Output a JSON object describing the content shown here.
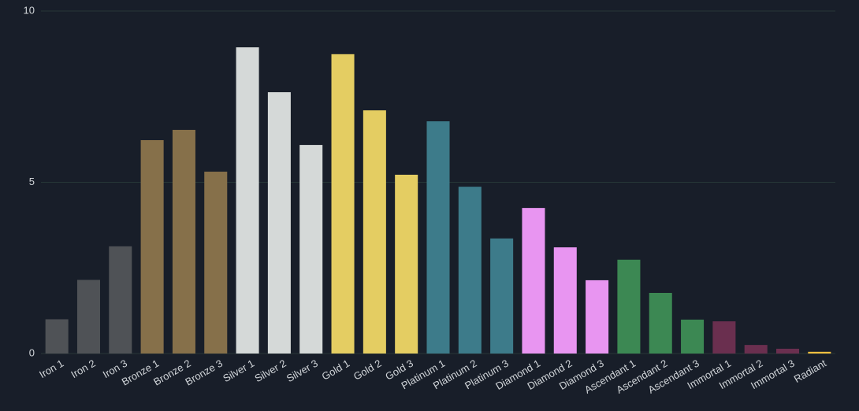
{
  "chart_data": {
    "type": "bar",
    "categories": [
      "Iron 1",
      "Iron 2",
      "Iron 3",
      "Bronze 1",
      "Bronze 2",
      "Bronze 3",
      "Silver 1",
      "Silver 2",
      "Silver 3",
      "Gold 1",
      "Gold 2",
      "Gold 3",
      "Platinum 1",
      "Platinum 2",
      "Platinum 3",
      "Diamond 1",
      "Diamond 2",
      "Diamond 3",
      "Ascendant 1",
      "Ascendant 2",
      "Ascendant 3",
      "Immortal 1",
      "Immortal 2",
      "Immortal 3",
      "Radiant"
    ],
    "values": [
      1.0,
      2.15,
      3.13,
      6.23,
      6.53,
      5.31,
      8.94,
      7.63,
      6.09,
      8.74,
      7.1,
      5.22,
      6.78,
      4.87,
      3.36,
      4.25,
      3.1,
      2.14,
      2.74,
      1.77,
      0.99,
      0.94,
      0.25,
      0.14,
      0.05
    ],
    "colors": [
      "#4f5256",
      "#4f5256",
      "#4f5256",
      "#86704a",
      "#86704a",
      "#86704a",
      "#d5d9d8",
      "#d5d9d8",
      "#d5d9d8",
      "#e4cd62",
      "#e4cd62",
      "#e4cd62",
      "#3d7b8a",
      "#3d7b8a",
      "#3d7b8a",
      "#e895f1",
      "#e895f1",
      "#e895f1",
      "#3c8853",
      "#3c8853",
      "#3c8853",
      "#6a2f4f",
      "#6a2f4f",
      "#6a2f4f",
      "#f0c040"
    ],
    "ylim": [
      0,
      10
    ],
    "yticks": [
      0,
      5,
      10
    ],
    "grid": true
  }
}
